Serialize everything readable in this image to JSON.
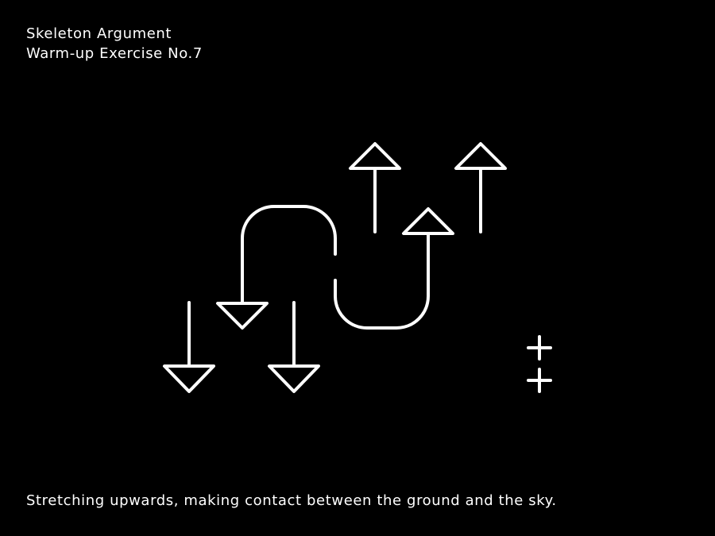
{
  "header": {
    "title": "Skeleton Argument",
    "subtitle": "Warm-up Exercise No.7"
  },
  "caption": "Stretching upwards, making contact between the ground and the sky.",
  "colors": {
    "background": "#000000",
    "foreground": "#ffffff"
  },
  "figure": {
    "elements": [
      "down-arrow",
      "down-arrow",
      "curved-down-arrow",
      "curved-up-arrow",
      "up-arrow",
      "up-arrow",
      "plus-sign",
      "plus-sign"
    ]
  }
}
